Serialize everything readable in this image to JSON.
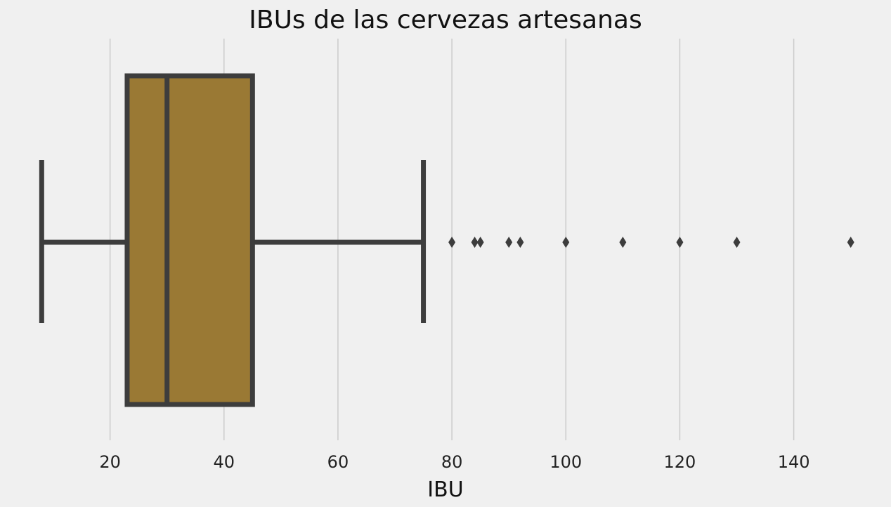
{
  "chart_data": {
    "type": "box",
    "title": "IBUs de las cervezas artesanas",
    "xlabel": "IBU",
    "ylabel": "",
    "xlim": [
      5,
      153
    ],
    "xticks": [
      20,
      40,
      60,
      80,
      100,
      120,
      140
    ],
    "tick_labels": [
      "20",
      "40",
      "60",
      "80",
      "100",
      "120",
      "140"
    ],
    "grid": "vertical",
    "box": {
      "whisker_low": 8,
      "q1": 23,
      "median": 30,
      "q3": 45,
      "whisker_high": 75,
      "color": "#9a7934",
      "edge_color": "#3d3d3d"
    },
    "outliers": [
      80,
      84,
      85,
      90,
      92,
      100,
      110,
      120,
      130,
      150
    ]
  },
  "style": {
    "background": "#f0f0f0",
    "grid_color": "#cbcbcb"
  }
}
